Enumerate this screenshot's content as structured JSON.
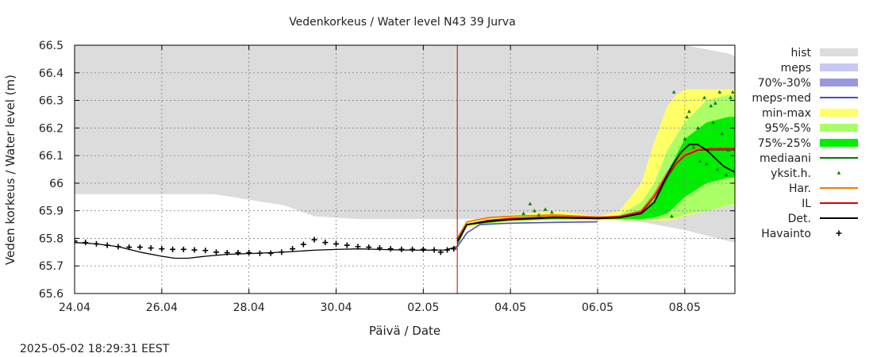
{
  "chart_data": {
    "type": "line",
    "title": "Vedenkorkeus / Water level   N43 39 Jurva",
    "xlabel": "Päivä / Date",
    "ylabel": "Veden korkeus / Water level (m)",
    "ylim": [
      65.6,
      66.5
    ],
    "xlim_days": [
      0,
      15.15
    ],
    "x_ticks": [
      {
        "day": 0,
        "label": "24.04"
      },
      {
        "day": 2,
        "label": "26.04"
      },
      {
        "day": 4,
        "label": "28.04"
      },
      {
        "day": 6,
        "label": "30.04"
      },
      {
        "day": 8,
        "label": "02.05"
      },
      {
        "day": 10,
        "label": "04.05"
      },
      {
        "day": 12,
        "label": "06.05"
      },
      {
        "day": 14,
        "label": "08.05"
      }
    ],
    "y_ticks": [
      65.6,
      65.7,
      65.8,
      65.9,
      66,
      66.1,
      66.2,
      66.3,
      66.4,
      66.5
    ],
    "y_tick_labels": [
      "65.6",
      "65.7",
      "65.8",
      "65.9",
      "66",
      "66.1",
      "66.2",
      "66.3",
      "66.4",
      "66.5"
    ],
    "grid": true,
    "forecast_start_day": 8.78,
    "legend_position": "right",
    "colors": {
      "hist": "#dcdcdc",
      "meps": "#c8c8f4",
      "p70_30": "#9898de",
      "meps_med": "#4a4ad0",
      "min_max": "#ffff66",
      "p95_5": "#aaff66",
      "p75_25": "#00ee00",
      "median": "#007700",
      "single": "#008000",
      "har": "#f07800",
      "il": "#dd0000",
      "det": "#000000",
      "obs": "#000000",
      "now_line": "#cc0000"
    },
    "legend": [
      {
        "key": "hist",
        "label": "hist",
        "kind": "band"
      },
      {
        "key": "meps",
        "label": "meps",
        "kind": "band"
      },
      {
        "key": "p70_30",
        "label": "70%-30%",
        "kind": "band"
      },
      {
        "key": "meps_med",
        "label": "meps-med",
        "kind": "line"
      },
      {
        "key": "min_max",
        "label": "min-max",
        "kind": "band"
      },
      {
        "key": "p95_5",
        "label": "95%-5%",
        "kind": "band"
      },
      {
        "key": "p75_25",
        "label": "75%-25%",
        "kind": "band"
      },
      {
        "key": "median",
        "label": "mediaani",
        "kind": "line"
      },
      {
        "key": "single",
        "label": "yksit.h.",
        "kind": "point"
      },
      {
        "key": "har",
        "label": "Har.",
        "kind": "line"
      },
      {
        "key": "il",
        "label": "IL",
        "kind": "line"
      },
      {
        "key": "det",
        "label": "Det.",
        "kind": "line"
      },
      {
        "key": "obs",
        "label": "Havainto",
        "kind": "cross"
      }
    ],
    "series": {
      "hist_band": {
        "x": [
          0,
          3.2,
          4.8,
          5.5,
          6.5,
          8,
          8.8,
          10,
          11,
          12,
          13,
          14,
          15,
          15.15
        ],
        "upper": [
          66.5,
          66.5,
          66.5,
          66.5,
          66.5,
          66.5,
          66.5,
          66.5,
          66.5,
          66.5,
          66.5,
          66.5,
          66.47,
          66.46
        ],
        "lower": [
          65.96,
          65.96,
          65.92,
          65.88,
          65.87,
          65.87,
          65.87,
          65.87,
          65.87,
          65.87,
          65.86,
          65.83,
          65.79,
          65.785
        ]
      },
      "min_max_band": {
        "x": [
          8.78,
          9,
          10,
          11,
          12,
          12.5,
          13,
          13.3,
          13.6,
          13.8,
          14,
          14.5,
          15,
          15.15
        ],
        "upper": [
          65.78,
          65.86,
          65.885,
          65.9,
          65.88,
          65.9,
          66.0,
          66.15,
          66.28,
          66.32,
          66.34,
          66.34,
          66.34,
          66.34
        ],
        "lower": [
          65.77,
          65.84,
          65.86,
          65.865,
          65.865,
          65.865,
          65.865,
          65.865,
          65.865,
          65.87,
          65.88,
          65.9,
          65.92,
          65.92
        ]
      },
      "p95_5_band": {
        "x": [
          8.78,
          9,
          10,
          11,
          12,
          12.5,
          13,
          13.3,
          13.6,
          13.8,
          14,
          14.5,
          15,
          15.15
        ],
        "upper": [
          65.78,
          65.855,
          65.875,
          65.885,
          65.875,
          65.885,
          65.93,
          66.0,
          66.12,
          66.17,
          66.22,
          66.3,
          66.32,
          66.32
        ],
        "lower": [
          65.775,
          65.845,
          65.862,
          65.868,
          65.868,
          65.868,
          65.868,
          65.87,
          65.872,
          65.875,
          65.885,
          65.9,
          65.92,
          65.925
        ]
      },
      "p75_25_band": {
        "x": [
          8.78,
          9,
          10,
          11,
          12,
          12.5,
          13,
          13.3,
          13.6,
          13.8,
          14,
          14.5,
          15,
          15.15
        ],
        "upper": [
          65.78,
          65.852,
          65.872,
          65.88,
          65.872,
          65.878,
          65.9,
          65.94,
          66.04,
          66.1,
          66.16,
          66.22,
          66.24,
          66.24
        ],
        "lower": [
          65.776,
          65.848,
          65.865,
          65.87,
          65.87,
          65.87,
          65.87,
          65.875,
          65.89,
          65.92,
          65.95,
          66.0,
          66.02,
          66.02
        ]
      },
      "meps_med": {
        "x": [
          8.78,
          9,
          9.3,
          10,
          11,
          12
        ],
        "y": [
          65.77,
          65.82,
          65.85,
          65.855,
          65.858,
          65.86
        ]
      },
      "median": {
        "x": [
          8.78,
          9,
          10,
          11,
          12,
          12.5,
          13,
          13.3,
          13.6,
          13.8,
          14,
          14.3,
          14.6,
          15,
          15.15
        ],
        "y": [
          65.78,
          65.85,
          65.87,
          65.875,
          65.872,
          65.875,
          65.89,
          65.93,
          66.02,
          66.07,
          66.1,
          66.12,
          66.12,
          66.12,
          66.12
        ]
      },
      "har": {
        "x": [
          8.78,
          9,
          9.5,
          10,
          11,
          12,
          12.5,
          13,
          13.3,
          13.6,
          13.8,
          14,
          14.3,
          14.6,
          15,
          15.15
        ],
        "y": [
          65.8,
          65.86,
          65.875,
          65.88,
          65.885,
          65.877,
          65.88,
          65.9,
          65.96,
          66.04,
          66.08,
          66.11,
          66.125,
          66.128,
          66.128,
          66.128
        ]
      },
      "il": {
        "x": [
          8.78,
          9,
          9.5,
          10,
          11,
          12,
          12.5,
          13,
          13.3,
          13.6,
          13.8,
          14,
          14.3,
          14.6,
          15,
          15.15
        ],
        "y": [
          65.79,
          65.85,
          65.865,
          65.872,
          65.878,
          65.875,
          65.878,
          65.895,
          65.95,
          66.03,
          66.07,
          66.1,
          66.12,
          66.125,
          66.125,
          66.125
        ]
      },
      "det": {
        "x": [
          8.78,
          9,
          9.5,
          10,
          11,
          12,
          12.5,
          13,
          13.3,
          13.5,
          13.7,
          13.9,
          14.1,
          14.3,
          14.5,
          14.7,
          14.9,
          15.15
        ],
        "y": [
          65.79,
          65.85,
          65.862,
          65.868,
          65.875,
          65.872,
          65.875,
          65.89,
          65.93,
          66.0,
          66.06,
          66.11,
          66.14,
          66.14,
          66.12,
          66.09,
          66.06,
          66.04
        ]
      },
      "history_sim": {
        "x": [
          0,
          0.5,
          1,
          1.5,
          2,
          2.3,
          2.6,
          3,
          3.5,
          4,
          4.5,
          5,
          5.5,
          6,
          6.5,
          7,
          7.5,
          8,
          8.5,
          8.78
        ],
        "y": [
          65.785,
          65.78,
          65.77,
          65.75,
          65.735,
          65.728,
          65.728,
          65.735,
          65.742,
          65.745,
          65.748,
          65.752,
          65.757,
          65.76,
          65.762,
          65.76,
          65.758,
          65.757,
          65.758,
          65.77
        ]
      },
      "observations": {
        "x": [
          0,
          0.25,
          0.5,
          0.75,
          1,
          1.25,
          1.5,
          1.75,
          2,
          2.25,
          2.5,
          2.75,
          3,
          3.25,
          3.5,
          3.75,
          4,
          4.25,
          4.5,
          4.75,
          5,
          5.25,
          5.5,
          5.75,
          6,
          6.25,
          6.5,
          6.75,
          7,
          7.25,
          7.5,
          7.75,
          8,
          8.25,
          8.4,
          8.55,
          8.7
        ],
        "y": [
          65.79,
          65.785,
          65.78,
          65.775,
          65.77,
          65.768,
          65.768,
          65.765,
          65.762,
          65.76,
          65.76,
          65.758,
          65.756,
          65.75,
          65.748,
          65.748,
          65.748,
          65.746,
          65.746,
          65.75,
          65.762,
          65.778,
          65.795,
          65.785,
          65.78,
          65.775,
          65.77,
          65.768,
          65.765,
          65.762,
          65.76,
          65.76,
          65.76,
          65.758,
          65.75,
          65.758,
          65.762
        ]
      },
      "single_members": {
        "x": [
          10.3,
          10.45,
          10.55,
          10.65,
          10.8,
          10.95,
          13.7,
          13.75,
          13.9,
          14.0,
          14.05,
          14.1,
          14.2,
          14.3,
          14.35,
          14.45,
          14.5,
          14.6,
          14.65,
          14.7,
          14.75,
          14.8,
          14.85,
          14.95,
          15.0,
          15.05,
          15.1
        ],
        "y": [
          65.89,
          65.925,
          65.9,
          65.885,
          65.905,
          65.895,
          65.88,
          66.33,
          66.11,
          66.16,
          66.24,
          66.26,
          66.13,
          66.2,
          66.08,
          66.31,
          66.07,
          66.28,
          66.22,
          66.29,
          66.05,
          66.33,
          66.18,
          66.03,
          66.12,
          66.31,
          66.33
        ]
      }
    }
  },
  "footer": {
    "timestamp": "2025-05-02 18:29:31 EEST"
  }
}
